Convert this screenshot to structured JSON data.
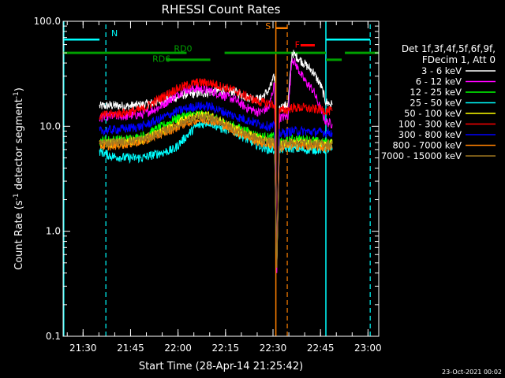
{
  "chart_data": {
    "type": "line",
    "title": "RHESSI Count Rates",
    "xlabel": "Start Time (28-Apr-14 21:25:42)",
    "ylabel_main": "Count Rate (s",
    "ylabel_sup1": "-1",
    "ylabel_mid": " detector segment",
    "ylabel_sup2": "-1",
    "ylabel_end": ")",
    "y_scale": "log",
    "ylim": [
      0.1,
      100.0
    ],
    "y_ticks": [
      {
        "value": 0.1,
        "label": "0.1"
      },
      {
        "value": 1.0,
        "label": "1.0"
      },
      {
        "value": 10.0,
        "label": "10.0"
      },
      {
        "value": 100.0,
        "label": "100.0"
      }
    ],
    "xlim_minutes": [
      -2.0,
      97.7
    ],
    "x_ticks": [
      {
        "minutes": 4.3,
        "label": "21:30"
      },
      {
        "minutes": 19.3,
        "label": "21:45"
      },
      {
        "minutes": 34.3,
        "label": "22:00"
      },
      {
        "minutes": 49.3,
        "label": "22:15"
      },
      {
        "minutes": 64.3,
        "label": "22:30"
      },
      {
        "minutes": 79.3,
        "label": "22:45"
      },
      {
        "minutes": 94.3,
        "label": "23:00"
      }
    ],
    "legend_header": [
      "Det 1f,3f,4f,5f,6f,9f,",
      "FDecim 1, Att 0"
    ],
    "legend_position": "right",
    "series": [
      {
        "name": "3 - 6 keV",
        "color": "#ffffff",
        "points": [
          [
            9.5,
            15.5
          ],
          [
            13,
            15.8
          ],
          [
            18,
            15.5
          ],
          [
            23,
            16
          ],
          [
            28,
            17
          ],
          [
            33,
            18.5
          ],
          [
            36,
            20
          ],
          [
            40,
            20.5
          ],
          [
            44,
            21
          ],
          [
            48,
            22
          ],
          [
            52,
            21.5
          ],
          [
            56,
            19
          ],
          [
            60,
            18
          ],
          [
            63,
            22
          ],
          [
            64.8,
            30
          ],
          [
            65.5,
            0.45
          ],
          [
            66.3,
            15
          ],
          [
            69,
            16
          ],
          [
            70.3,
            50
          ],
          [
            74,
            40
          ],
          [
            77,
            33
          ],
          [
            79.5,
            24
          ],
          [
            81,
            17
          ],
          [
            83,
            16
          ]
        ]
      },
      {
        "name": "6 - 12 keV",
        "color": "#ff00ff",
        "points": [
          [
            9.5,
            12
          ],
          [
            13,
            12.5
          ],
          [
            18,
            12.5
          ],
          [
            23,
            13
          ],
          [
            28,
            15
          ],
          [
            33,
            19
          ],
          [
            36,
            22
          ],
          [
            40,
            23
          ],
          [
            44,
            22
          ],
          [
            48,
            20
          ],
          [
            52,
            18
          ],
          [
            56,
            15
          ],
          [
            60,
            13.5
          ],
          [
            63,
            15
          ],
          [
            64.8,
            26
          ],
          [
            65.5,
            0.4
          ],
          [
            66.3,
            12
          ],
          [
            69,
            12.5
          ],
          [
            70.3,
            45
          ],
          [
            74,
            28
          ],
          [
            77,
            22
          ],
          [
            79.5,
            14
          ],
          [
            81,
            11
          ],
          [
            83,
            10.5
          ]
        ]
      },
      {
        "name": "12 - 25 keV",
        "color": "#00ff00",
        "points": [
          [
            9.5,
            7.2
          ],
          [
            13,
            7.4
          ],
          [
            18,
            7.5
          ],
          [
            23,
            8
          ],
          [
            28,
            9.5
          ],
          [
            33,
            11.5
          ],
          [
            36,
            12.5
          ],
          [
            40,
            13
          ],
          [
            44,
            12.5
          ],
          [
            48,
            11
          ],
          [
            52,
            10
          ],
          [
            56,
            9
          ],
          [
            60,
            8
          ],
          [
            63,
            7.8
          ],
          [
            64.8,
            8
          ],
          [
            65.5,
            0.45
          ],
          [
            66.3,
            7
          ],
          [
            69,
            7.2
          ],
          [
            70.3,
            7.5
          ],
          [
            74,
            7.5
          ],
          [
            77,
            7.3
          ],
          [
            79.5,
            7
          ],
          [
            81,
            7
          ],
          [
            83,
            7
          ]
        ]
      },
      {
        "name": "25 - 50 keV",
        "color": "#00ffff",
        "points": [
          [
            9.5,
            5.8
          ],
          [
            13,
            5.2
          ],
          [
            18,
            5
          ],
          [
            23,
            5
          ],
          [
            28,
            5.5
          ],
          [
            33,
            6
          ],
          [
            36,
            7.5
          ],
          [
            40,
            10
          ],
          [
            44,
            11
          ],
          [
            48,
            9.5
          ],
          [
            52,
            9
          ],
          [
            56,
            7.5
          ],
          [
            60,
            6.5
          ],
          [
            63,
            6
          ],
          [
            64.8,
            6
          ],
          [
            65.5,
            0.45
          ],
          [
            66.3,
            6
          ],
          [
            69,
            6.2
          ],
          [
            70.3,
            6.2
          ],
          [
            74,
            6
          ],
          [
            77,
            6
          ],
          [
            79.5,
            6
          ],
          [
            81,
            6
          ],
          [
            83,
            6
          ]
        ]
      },
      {
        "name": "50 - 100 keV",
        "color": "#ffff00",
        "points": [
          [
            9.5,
            6.8
          ],
          [
            13,
            6.8
          ],
          [
            18,
            7
          ],
          [
            23,
            7.3
          ],
          [
            28,
            8.5
          ],
          [
            33,
            10
          ],
          [
            36,
            11.5
          ],
          [
            40,
            12.5
          ],
          [
            44,
            12.5
          ],
          [
            48,
            11
          ],
          [
            52,
            9.5
          ],
          [
            56,
            8.5
          ],
          [
            60,
            7.5
          ],
          [
            63,
            7
          ],
          [
            64.8,
            7
          ],
          [
            65.5,
            0.45
          ],
          [
            66.3,
            6.5
          ],
          [
            69,
            6.8
          ],
          [
            70.3,
            7
          ],
          [
            74,
            7
          ],
          [
            77,
            6.8
          ],
          [
            79.5,
            6.8
          ],
          [
            81,
            6.8
          ],
          [
            83,
            6.8
          ]
        ]
      },
      {
        "name": "100 - 300 keV",
        "color": "#ff0000",
        "points": [
          [
            9.5,
            12.5
          ],
          [
            13,
            13
          ],
          [
            18,
            13.5
          ],
          [
            23,
            14.5
          ],
          [
            28,
            18
          ],
          [
            33,
            22
          ],
          [
            36,
            24
          ],
          [
            40,
            26
          ],
          [
            44,
            26
          ],
          [
            48,
            24
          ],
          [
            52,
            22
          ],
          [
            56,
            19
          ],
          [
            60,
            17
          ],
          [
            63,
            16.5
          ],
          [
            64.8,
            16
          ],
          [
            65.5,
            0.45
          ],
          [
            66.3,
            14
          ],
          [
            69,
            14.5
          ],
          [
            70.3,
            15
          ],
          [
            74,
            15
          ],
          [
            77,
            14.5
          ],
          [
            79.5,
            14.5
          ],
          [
            81,
            14
          ],
          [
            83,
            14
          ]
        ]
      },
      {
        "name": "300 - 800 keV",
        "color": "#0000ff",
        "points": [
          [
            9.5,
            9
          ],
          [
            13,
            9.2
          ],
          [
            18,
            9.5
          ],
          [
            23,
            10
          ],
          [
            28,
            11.5
          ],
          [
            33,
            13.5
          ],
          [
            36,
            14.5
          ],
          [
            40,
            15.5
          ],
          [
            44,
            15.5
          ],
          [
            48,
            14
          ],
          [
            52,
            12.5
          ],
          [
            56,
            11.5
          ],
          [
            60,
            10.5
          ],
          [
            63,
            10
          ],
          [
            64.8,
            10
          ],
          [
            65.5,
            0.45
          ],
          [
            66.3,
            8.5
          ],
          [
            69,
            8.8
          ],
          [
            70.3,
            9
          ],
          [
            74,
            9
          ],
          [
            77,
            8.8
          ],
          [
            79.5,
            8.8
          ],
          [
            81,
            8.7
          ],
          [
            83,
            8.7
          ]
        ]
      },
      {
        "name": "800 - 7000 keV",
        "color": "#ff8000",
        "points": [
          [
            9.5,
            6.5
          ],
          [
            13,
            6.5
          ],
          [
            18,
            6.8
          ],
          [
            23,
            7.2
          ],
          [
            28,
            8.2
          ],
          [
            33,
            9.5
          ],
          [
            36,
            10.5
          ],
          [
            40,
            11.5
          ],
          [
            44,
            11.5
          ],
          [
            48,
            10.5
          ],
          [
            52,
            9
          ],
          [
            56,
            8
          ],
          [
            60,
            7
          ],
          [
            63,
            6.8
          ],
          [
            64.8,
            6.5
          ],
          [
            65.5,
            0.45
          ],
          [
            66.3,
            6.2
          ],
          [
            69,
            6.5
          ],
          [
            70.3,
            6.5
          ],
          [
            74,
            6.5
          ],
          [
            77,
            6.5
          ],
          [
            79.5,
            6.3
          ],
          [
            81,
            6.3
          ],
          [
            83,
            6.3
          ]
        ]
      },
      {
        "name": "7000 - 15000 keV",
        "color": "#a07820",
        "points": [
          [
            9.5,
            7
          ],
          [
            13,
            7
          ],
          [
            18,
            7.2
          ],
          [
            23,
            7.5
          ],
          [
            28,
            8.5
          ],
          [
            33,
            10
          ],
          [
            36,
            11
          ],
          [
            40,
            12
          ],
          [
            44,
            12
          ],
          [
            48,
            11
          ],
          [
            52,
            9.5
          ],
          [
            56,
            8.5
          ],
          [
            60,
            7.5
          ],
          [
            63,
            7.2
          ],
          [
            64.8,
            7
          ],
          [
            65.5,
            0.45
          ],
          [
            66.3,
            6.8
          ],
          [
            69,
            7
          ],
          [
            70.3,
            7
          ],
          [
            74,
            7
          ],
          [
            77,
            6.8
          ],
          [
            79.5,
            6.8
          ],
          [
            81,
            6.8
          ],
          [
            83,
            6.8
          ]
        ]
      }
    ],
    "annotations": [
      {
        "text": "N",
        "color": "#00ffff"
      },
      {
        "text": "S",
        "color": "#ff8000"
      },
      {
        "text": "F",
        "color": "#ff0000"
      },
      {
        "text": "RD0",
        "color": "#00a000"
      },
      {
        "text": "RD6",
        "color": "#00a000"
      }
    ]
  },
  "footer": {
    "date": "23-Oct-2021 00:02"
  }
}
